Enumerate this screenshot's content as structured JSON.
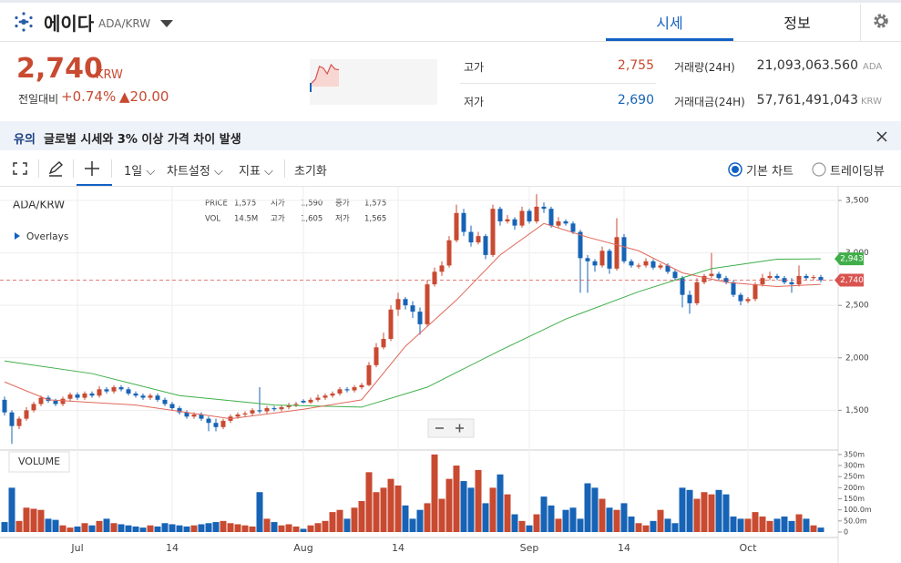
{
  "header": {
    "coin": "에이다",
    "pair": "ADA/KRW",
    "tabs": [
      "시세",
      "정보"
    ]
  },
  "price": {
    "value": "2,740",
    "unit": "KRW",
    "change_label": "전일대비",
    "change_pct": "+0.74%",
    "change_abs": "▲20.00",
    "mini_chart": {
      "values": [
        2700,
        2712,
        2750,
        2745,
        2728,
        2755,
        2742,
        2740
      ],
      "ylim": [
        2690,
        2755
      ]
    }
  },
  "stats": [
    {
      "label": "고가",
      "value": "2,755"
    },
    {
      "label": "저가",
      "value": "2,690"
    },
    {
      "label": "거래량(24H)",
      "value": "21,093,063.560",
      "unit": "ADA"
    },
    {
      "label": "거래대금(24H)",
      "value": "57,761,491,043",
      "unit": "KRW"
    }
  ],
  "notice": {
    "tag": "유의",
    "text": "글로벌 시세와 3% 이상 가격 차이 발생"
  },
  "toolbar": {
    "interval": "1일",
    "settings": "차트설정",
    "indicators": "지표",
    "reset": "초기화",
    "options": [
      "기본 차트",
      "트레이딩뷰"
    ]
  },
  "chart_data": {
    "type": "candlestick",
    "symbol": "ADA/KRW",
    "overlays": "Overlays",
    "info": [
      [
        "PRICE",
        "1,575"
      ],
      [
        "시가",
        "1,590"
      ],
      [
        "종가",
        "1,575"
      ],
      [
        "VOL",
        "14.5M"
      ],
      [
        "고가",
        "1,605"
      ],
      [
        "저가",
        "1,565"
      ]
    ],
    "up_color": "#c84a31",
    "down_color": "#1763b6",
    "xlim": [
      -0.625,
      114.375
    ],
    "xticks": [
      {
        "value": 10,
        "label": "Jul"
      },
      {
        "value": 23,
        "label": "14"
      },
      {
        "value": 41,
        "label": "Aug"
      },
      {
        "value": 54,
        "label": "14"
      },
      {
        "value": 72,
        "label": "Sep"
      },
      {
        "value": 85,
        "label": "14"
      },
      {
        "value": 102,
        "label": "Oct"
      }
    ],
    "ylim": [
      1130,
      3630
    ],
    "yticks": [
      {
        "value": 1500,
        "label": "1,500"
      },
      {
        "value": 2000,
        "label": "2,000"
      },
      {
        "value": 2500,
        "label": "2,500"
      },
      {
        "value": 3000,
        "label": "3,000"
      },
      {
        "value": 3500,
        "label": "3,500"
      }
    ],
    "candles": [
      [
        1600,
        1630,
        1450,
        1480
      ],
      [
        1480,
        1500,
        1180,
        1350
      ],
      [
        1350,
        1440,
        1320,
        1420
      ],
      [
        1420,
        1530,
        1400,
        1500
      ],
      [
        1500,
        1580,
        1480,
        1560
      ],
      [
        1560,
        1640,
        1540,
        1620
      ],
      [
        1620,
        1640,
        1570,
        1590
      ],
      [
        1590,
        1610,
        1540,
        1560
      ],
      [
        1560,
        1630,
        1540,
        1610
      ],
      [
        1610,
        1670,
        1590,
        1650
      ],
      [
        1650,
        1670,
        1600,
        1620
      ],
      [
        1620,
        1680,
        1600,
        1660
      ],
      [
        1660,
        1680,
        1620,
        1640
      ],
      [
        1640,
        1730,
        1620,
        1700
      ],
      [
        1700,
        1720,
        1660,
        1680
      ],
      [
        1680,
        1740,
        1660,
        1720
      ],
      [
        1720,
        1740,
        1680,
        1700
      ],
      [
        1700,
        1720,
        1640,
        1660
      ],
      [
        1660,
        1680,
        1620,
        1640
      ],
      [
        1640,
        1660,
        1600,
        1620
      ],
      [
        1620,
        1660,
        1600,
        1640
      ],
      [
        1640,
        1660,
        1580,
        1600
      ],
      [
        1600,
        1620,
        1540,
        1560
      ],
      [
        1560,
        1580,
        1500,
        1520
      ],
      [
        1520,
        1540,
        1460,
        1480
      ],
      [
        1480,
        1500,
        1420,
        1440
      ],
      [
        1440,
        1480,
        1420,
        1460
      ],
      [
        1460,
        1480,
        1400,
        1420
      ],
      [
        1420,
        1440,
        1300,
        1380
      ],
      [
        1380,
        1420,
        1300,
        1340
      ],
      [
        1340,
        1420,
        1320,
        1400
      ],
      [
        1400,
        1460,
        1380,
        1440
      ],
      [
        1440,
        1480,
        1420,
        1460
      ],
      [
        1460,
        1490,
        1440,
        1470
      ],
      [
        1470,
        1520,
        1450,
        1500
      ],
      [
        1500,
        1720,
        1470,
        1490
      ],
      [
        1490,
        1540,
        1470,
        1520
      ],
      [
        1520,
        1540,
        1490,
        1510
      ],
      [
        1510,
        1550,
        1490,
        1530
      ],
      [
        1530,
        1570,
        1510,
        1550
      ],
      [
        1550,
        1580,
        1530,
        1560
      ],
      [
        1590,
        1605,
        1565,
        1575
      ],
      [
        1575,
        1620,
        1560,
        1600
      ],
      [
        1600,
        1650,
        1580,
        1620
      ],
      [
        1620,
        1660,
        1600,
        1640
      ],
      [
        1640,
        1680,
        1620,
        1660
      ],
      [
        1660,
        1720,
        1640,
        1700
      ],
      [
        1700,
        1720,
        1670,
        1690
      ],
      [
        1690,
        1740,
        1670,
        1720
      ],
      [
        1720,
        1760,
        1700,
        1740
      ],
      [
        1740,
        1960,
        1730,
        1930
      ],
      [
        1930,
        2140,
        1910,
        2100
      ],
      [
        2100,
        2240,
        2080,
        2180
      ],
      [
        2180,
        2500,
        2160,
        2460
      ],
      [
        2460,
        2620,
        2400,
        2560
      ],
      [
        2560,
        2580,
        2460,
        2500
      ],
      [
        2500,
        2540,
        2380,
        2440
      ],
      [
        2440,
        2480,
        2220,
        2320
      ],
      [
        2320,
        2740,
        2300,
        2700
      ],
      [
        2700,
        2860,
        2680,
        2820
      ],
      [
        2820,
        2920,
        2780,
        2880
      ],
      [
        2880,
        3160,
        2860,
        3120
      ],
      [
        3120,
        3460,
        3100,
        3380
      ],
      [
        3380,
        3420,
        3160,
        3200
      ],
      [
        3200,
        3260,
        3060,
        3100
      ],
      [
        3100,
        3200,
        3080,
        3160
      ],
      [
        3160,
        3180,
        2940,
        2980
      ],
      [
        2980,
        3460,
        2960,
        3420
      ],
      [
        3420,
        3440,
        3260,
        3300
      ],
      [
        3300,
        3360,
        3280,
        3320
      ],
      [
        3320,
        3340,
        3220,
        3260
      ],
      [
        3260,
        3440,
        3240,
        3400
      ],
      [
        3400,
        3420,
        3280,
        3300
      ],
      [
        3300,
        3560,
        3280,
        3440
      ],
      [
        3440,
        3480,
        3380,
        3420
      ],
      [
        3420,
        3440,
        3240,
        3260
      ],
      [
        3260,
        3340,
        3240,
        3300
      ],
      [
        3300,
        3320,
        3260,
        3280
      ],
      [
        3280,
        3300,
        3180,
        3200
      ],
      [
        3200,
        3220,
        2620,
        2950
      ],
      [
        2950,
        2980,
        2620,
        2920
      ],
      [
        2920,
        2940,
        2820,
        2880
      ],
      [
        2880,
        3060,
        2860,
        3020
      ],
      [
        3020,
        3040,
        2800,
        2850
      ],
      [
        2850,
        3330,
        2830,
        3150
      ],
      [
        3150,
        3180,
        2900,
        2920
      ],
      [
        2920,
        2940,
        2860,
        2880
      ],
      [
        2870,
        2900,
        2850,
        2880
      ],
      [
        2880,
        2950,
        2860,
        2920
      ],
      [
        2920,
        2940,
        2840,
        2860
      ],
      [
        2860,
        2900,
        2840,
        2880
      ],
      [
        2880,
        2900,
        2800,
        2820
      ],
      [
        2820,
        2840,
        2740,
        2760
      ],
      [
        2760,
        2780,
        2480,
        2600
      ],
      [
        2600,
        2640,
        2420,
        2520
      ],
      [
        2520,
        2760,
        2500,
        2720
      ],
      [
        2720,
        2800,
        2700,
        2780
      ],
      [
        2780,
        3000,
        2760,
        2800
      ],
      [
        2800,
        2820,
        2740,
        2760
      ],
      [
        2760,
        2780,
        2700,
        2720
      ],
      [
        2720,
        2740,
        2580,
        2600
      ],
      [
        2600,
        2620,
        2500,
        2540
      ],
      [
        2540,
        2580,
        2520,
        2560
      ],
      [
        2560,
        2720,
        2540,
        2700
      ],
      [
        2700,
        2800,
        2680,
        2760
      ],
      [
        2760,
        2820,
        2740,
        2780
      ],
      [
        2780,
        2800,
        2740,
        2760
      ],
      [
        2760,
        2780,
        2700,
        2720
      ],
      [
        2720,
        2760,
        2620,
        2700
      ],
      [
        2700,
        2880,
        2680,
        2780
      ],
      [
        2780,
        2800,
        2740,
        2760
      ],
      [
        2760,
        2790,
        2740,
        2770
      ],
      [
        2770,
        2790,
        2720,
        2740
      ]
    ],
    "series": [
      {
        "color": "#3fae49",
        "x": [
          0,
          12,
          24,
          37,
          49,
          58,
          68,
          77,
          87,
          97,
          106,
          112
        ],
        "values": [
          1970,
          1850,
          1640,
          1550,
          1530,
          1720,
          2070,
          2370,
          2630,
          2850,
          2940,
          2943
        ]
      },
      {
        "color": "#e0685a",
        "x": [
          0,
          6,
          18,
          31,
          41,
          49,
          55,
          62,
          68,
          74,
          80,
          87,
          93,
          99,
          106,
          112
        ],
        "values": [
          1770,
          1600,
          1550,
          1420,
          1510,
          1600,
          2110,
          2550,
          2980,
          3280,
          3150,
          3020,
          2810,
          2720,
          2680,
          2700
        ]
      }
    ],
    "price_tags": [
      {
        "value": 2943,
        "label": "2,943",
        "color": "#3fae49"
      },
      {
        "value": 2740,
        "label": "2,740",
        "color": "#d9534f"
      }
    ],
    "volume": {
      "name": "VOLUME",
      "ylim": [
        0,
        366
      ],
      "yticks": [
        0,
        {
          "value": 50,
          "label": "50.0m"
        },
        {
          "value": 100,
          "label": "100.0m"
        },
        {
          "value": 150,
          "label": "150m"
        },
        {
          "value": 200,
          "label": "200m"
        },
        {
          "value": 250,
          "label": "250m"
        },
        {
          "value": 300,
          "label": "300m"
        },
        {
          "value": 350,
          "label": "350m"
        }
      ],
      "values": [
        45,
        200,
        50,
        110,
        105,
        100,
        60,
        55,
        30,
        20,
        25,
        40,
        30,
        50,
        60,
        40,
        35,
        30,
        25,
        20,
        30,
        25,
        40,
        35,
        30,
        25,
        30,
        35,
        40,
        45,
        50,
        40,
        35,
        30,
        25,
        180,
        60,
        45,
        30,
        35,
        25,
        14.5,
        30,
        40,
        50,
        90,
        100,
        60,
        110,
        140,
        270,
        180,
        200,
        240,
        210,
        120,
        60,
        100,
        130,
        350,
        150,
        240,
        300,
        230,
        200,
        280,
        130,
        200,
        260,
        170,
        80,
        50,
        30,
        80,
        160,
        120,
        60,
        100,
        110,
        60,
        220,
        200,
        150,
        110,
        100,
        130,
        70,
        40,
        30,
        50,
        100,
        60,
        40,
        200,
        190,
        150,
        180,
        170,
        190,
        170,
        70,
        60,
        60,
        90,
        70,
        50,
        60,
        70,
        50,
        80,
        60,
        30,
        20
      ]
    }
  }
}
